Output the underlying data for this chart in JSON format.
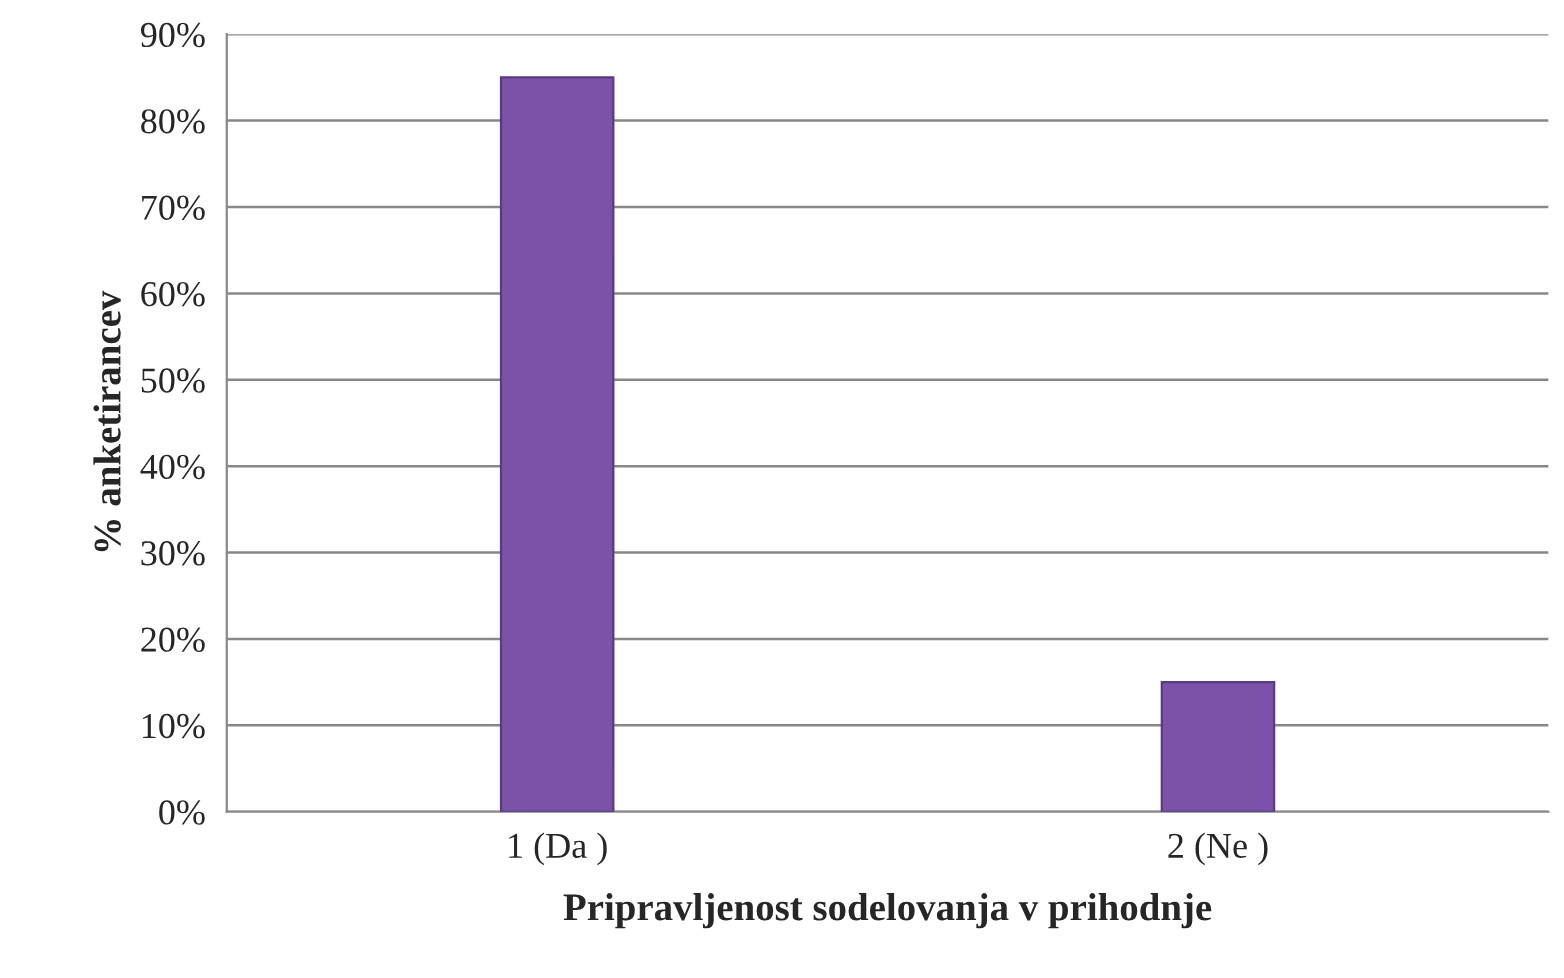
{
  "chart_data": {
    "type": "bar",
    "xlabel": "Pripravljenost sodelovanja v prihodnje",
    "ylabel": "% anketirancev",
    "categories": [
      "1 (Da )",
      "2 (Ne )"
    ],
    "values": [
      85,
      15
    ],
    "color": "#7b52a8",
    "ylim": [
      0,
      90
    ],
    "yticks": [
      {
        "value": 0,
        "label": "0%"
      },
      {
        "value": 10,
        "label": "10%"
      },
      {
        "value": 20,
        "label": "20%"
      },
      {
        "value": 30,
        "label": "30%"
      },
      {
        "value": 40,
        "label": "40%"
      },
      {
        "value": 50,
        "label": "50%"
      },
      {
        "value": 60,
        "label": "60%"
      },
      {
        "value": 70,
        "label": "70%"
      },
      {
        "value": 80,
        "label": "80%"
      },
      {
        "value": 90,
        "label": "90%"
      }
    ],
    "grid": "y",
    "legend": false
  }
}
